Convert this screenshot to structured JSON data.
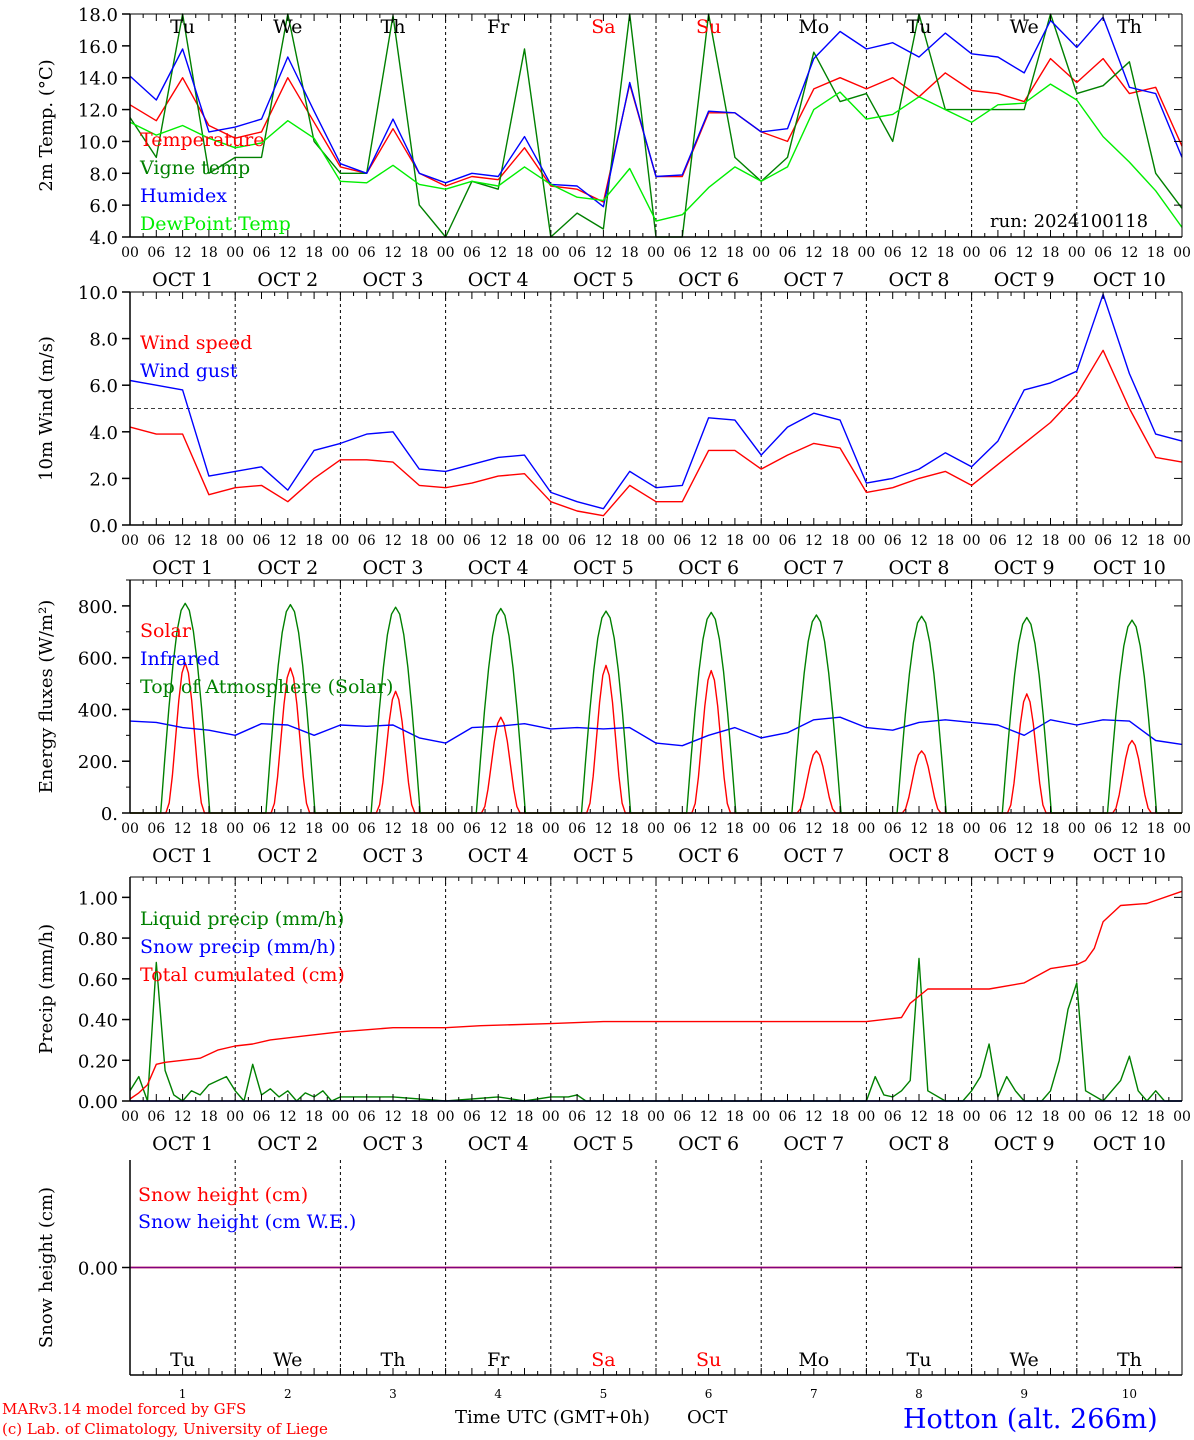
{
  "run_label": "run: 2024100118",
  "footer": {
    "model": "MARv3.14 model forced by GFS",
    "copyright": "(c) Lab. of Climatology, University of Liege",
    "xlabel": "Time UTC (GMT+0h)",
    "month": "OCT",
    "station": "Hotton (alt. 266m)"
  },
  "colors": {
    "red": "#ff0000",
    "blue": "#0000ff",
    "green": "#008000",
    "lime": "#00ee00",
    "purple": "#800080"
  },
  "days": [
    {
      "num": "1",
      "label": "OCT  1",
      "weekday": "Tu"
    },
    {
      "num": "2",
      "label": "OCT  2",
      "weekday": "We"
    },
    {
      "num": "3",
      "label": "OCT  3",
      "weekday": "Th"
    },
    {
      "num": "4",
      "label": "OCT  4",
      "weekday": "Fr"
    },
    {
      "num": "5",
      "label": "OCT  5",
      "weekday": "Sa",
      "weekend": true
    },
    {
      "num": "6",
      "label": "OCT  6",
      "weekday": "Su",
      "weekend": true
    },
    {
      "num": "7",
      "label": "OCT  7",
      "weekday": "Mo"
    },
    {
      "num": "8",
      "label": "OCT  8",
      "weekday": "Tu"
    },
    {
      "num": "9",
      "label": "OCT  9",
      "weekday": "We"
    },
    {
      "num": "10",
      "label": "OCT 10",
      "weekday": "Th"
    }
  ],
  "hour_ticks": [
    "00",
    "06",
    "12",
    "18"
  ],
  "chart_data": [
    {
      "type": "line",
      "ylabel": "2m Temp. (°C)",
      "ylim": [
        4,
        18
      ],
      "yticks": [
        "4.0",
        "6.0",
        "8.0",
        "10.0",
        "12.0",
        "14.0",
        "16.0",
        "18.0"
      ],
      "x_unit": "hours from 2024-10-01 00 UTC",
      "series": [
        {
          "name": "Temperature",
          "color": "#ff0000",
          "x": [
            0,
            6,
            12,
            18,
            24,
            30,
            36,
            42,
            48,
            54,
            60,
            66,
            72,
            78,
            84,
            90,
            96,
            102,
            108,
            114,
            120,
            126,
            132,
            138,
            144,
            150,
            156,
            162,
            168,
            174,
            180,
            186,
            192,
            198,
            204,
            210,
            216,
            222,
            228,
            234,
            240
          ],
          "y": [
            12.3,
            11.3,
            14.0,
            11.0,
            10.2,
            10.6,
            14.0,
            11.2,
            8.4,
            8.0,
            10.8,
            8.0,
            7.2,
            7.8,
            7.6,
            9.6,
            7.2,
            7.0,
            6.2,
            13.6,
            7.8,
            7.8,
            11.8,
            11.8,
            10.6,
            10.0,
            13.3,
            14.0,
            13.3,
            14.0,
            12.8,
            14.3,
            13.2,
            13.0,
            12.5,
            15.2,
            13.7,
            15.2,
            13.0,
            13.4,
            9.7
          ]
        },
        {
          "name": "Vigne temp",
          "color": "#008000",
          "x": [
            0,
            6,
            12,
            18,
            24,
            30,
            36,
            42,
            48,
            54,
            60,
            66,
            72,
            78,
            84,
            90,
            96,
            102,
            108,
            114,
            120,
            126,
            132,
            138,
            144,
            150,
            156,
            162,
            168,
            174,
            180,
            186,
            192,
            198,
            204,
            210,
            216,
            222,
            228,
            234,
            240
          ],
          "y": [
            11.5,
            9.0,
            18.0,
            8.0,
            9.0,
            9.0,
            18.0,
            10.0,
            8.0,
            8.0,
            17.9,
            6.0,
            4.0,
            7.5,
            7.0,
            15.8,
            4.0,
            5.5,
            4.5,
            18.0,
            4.0,
            4.0,
            18.0,
            9.0,
            7.5,
            9.0,
            15.6,
            12.5,
            13.0,
            10.0,
            18.0,
            12.0,
            12.0,
            12.0,
            12.0,
            18.0,
            13.0,
            13.5,
            15.0,
            8.0,
            5.8
          ]
        },
        {
          "name": "Humidex",
          "color": "#0000ff",
          "x": [
            0,
            6,
            12,
            18,
            24,
            30,
            36,
            42,
            48,
            54,
            60,
            66,
            72,
            78,
            84,
            90,
            96,
            102,
            108,
            114,
            120,
            126,
            132,
            138,
            144,
            150,
            156,
            162,
            168,
            174,
            180,
            186,
            192,
            198,
            204,
            210,
            216,
            222,
            228,
            234,
            240
          ],
          "y": [
            14.1,
            12.6,
            15.8,
            10.6,
            10.9,
            11.4,
            15.3,
            11.9,
            8.6,
            8.0,
            11.4,
            8.0,
            7.4,
            8.0,
            7.8,
            10.3,
            7.3,
            7.2,
            5.9,
            13.7,
            7.8,
            7.9,
            11.9,
            11.8,
            10.6,
            10.8,
            15.2,
            16.9,
            15.8,
            16.2,
            15.3,
            16.8,
            15.5,
            15.3,
            14.3,
            17.6,
            15.9,
            17.8,
            13.4,
            13.0,
            9.0
          ]
        },
        {
          "name": "DewPoint Temp",
          "color": "#00ee00",
          "x": [
            0,
            6,
            12,
            18,
            24,
            30,
            36,
            42,
            48,
            54,
            60,
            66,
            72,
            78,
            84,
            90,
            96,
            102,
            108,
            114,
            120,
            126,
            132,
            138,
            144,
            150,
            156,
            162,
            168,
            174,
            180,
            186,
            192,
            198,
            204,
            210,
            216,
            222,
            228,
            234,
            240
          ],
          "y": [
            11.2,
            10.4,
            11.0,
            10.2,
            9.6,
            9.9,
            11.3,
            10.2,
            7.5,
            7.4,
            8.5,
            7.3,
            7.0,
            7.5,
            7.2,
            8.4,
            7.3,
            6.5,
            6.3,
            8.3,
            5.0,
            5.4,
            7.1,
            8.4,
            7.5,
            8.4,
            12.0,
            13.1,
            11.4,
            11.7,
            12.8,
            12.0,
            11.2,
            12.3,
            12.4,
            13.6,
            12.6,
            10.3,
            8.7,
            6.9,
            4.6
          ]
        }
      ]
    },
    {
      "type": "line",
      "ylabel": "10m Wind (m/s)",
      "ylim": [
        0,
        10
      ],
      "yticks": [
        "0.0",
        "2.0",
        "4.0",
        "6.0",
        "8.0",
        "10.0"
      ],
      "reference_line": 5,
      "series": [
        {
          "name": "Wind speed",
          "color": "#ff0000",
          "x": [
            0,
            6,
            12,
            18,
            24,
            30,
            36,
            42,
            48,
            54,
            60,
            66,
            72,
            78,
            84,
            90,
            96,
            102,
            108,
            114,
            120,
            126,
            132,
            138,
            144,
            150,
            156,
            162,
            168,
            174,
            180,
            186,
            192,
            198,
            204,
            210,
            216,
            222,
            228,
            234,
            240
          ],
          "y": [
            4.2,
            3.9,
            3.9,
            1.3,
            1.6,
            1.7,
            1.0,
            2.0,
            2.8,
            2.8,
            2.7,
            1.7,
            1.6,
            1.8,
            2.1,
            2.2,
            1.0,
            0.6,
            0.4,
            1.7,
            1.0,
            1.0,
            3.2,
            3.2,
            2.4,
            3.0,
            3.5,
            3.3,
            1.4,
            1.6,
            2.0,
            2.3,
            1.7,
            2.6,
            3.5,
            4.4,
            5.6,
            7.5,
            5.0,
            2.9,
            2.7
          ]
        },
        {
          "name": "Wind gust",
          "color": "#0000ff",
          "x": [
            0,
            6,
            12,
            18,
            24,
            30,
            36,
            42,
            48,
            54,
            60,
            66,
            72,
            78,
            84,
            90,
            96,
            102,
            108,
            114,
            120,
            126,
            132,
            138,
            144,
            150,
            156,
            162,
            168,
            174,
            180,
            186,
            192,
            198,
            204,
            210,
            216,
            222,
            228,
            234,
            240
          ],
          "y": [
            6.2,
            6.0,
            5.8,
            2.1,
            2.3,
            2.5,
            1.5,
            3.2,
            3.5,
            3.9,
            4.0,
            2.4,
            2.3,
            2.6,
            2.9,
            3.0,
            1.4,
            1.0,
            0.7,
            2.3,
            1.6,
            1.7,
            4.6,
            4.5,
            3.0,
            4.2,
            4.8,
            4.5,
            1.8,
            2.0,
            2.4,
            3.1,
            2.5,
            3.6,
            5.8,
            6.1,
            6.6,
            9.9,
            6.5,
            3.9,
            3.6
          ]
        }
      ]
    },
    {
      "type": "line",
      "ylabel": "Energy fluxes (W/m²)",
      "ylim": [
        0,
        900
      ],
      "yticks": [
        "0.",
        "200.",
        "400.",
        "600.",
        "800."
      ],
      "series": [
        {
          "name": "Solar",
          "color": "#ff0000",
          "peaks": [
            580,
            560,
            470,
            370,
            570,
            550,
            240,
            240,
            460,
            280
          ]
        },
        {
          "name": "Infrared",
          "color": "#0000ff",
          "x": [
            0,
            6,
            12,
            18,
            24,
            30,
            36,
            42,
            48,
            54,
            60,
            66,
            72,
            78,
            84,
            90,
            96,
            102,
            108,
            114,
            120,
            126,
            132,
            138,
            144,
            150,
            156,
            162,
            168,
            174,
            180,
            186,
            192,
            198,
            204,
            210,
            216,
            222,
            228,
            234,
            240
          ],
          "y": [
            355,
            350,
            330,
            320,
            300,
            345,
            340,
            300,
            340,
            335,
            340,
            290,
            270,
            330,
            335,
            345,
            325,
            330,
            325,
            330,
            270,
            260,
            300,
            330,
            290,
            310,
            360,
            370,
            330,
            320,
            350,
            360,
            350,
            340,
            300,
            360,
            340,
            360,
            355,
            280,
            265
          ]
        },
        {
          "name": "Top of Atmosphere (Solar)",
          "color": "#008000",
          "peaks": [
            810,
            805,
            795,
            790,
            780,
            775,
            765,
            760,
            755,
            745
          ]
        }
      ]
    },
    {
      "type": "line",
      "ylabel": "Precip (mm/h)",
      "ylim": [
        0,
        1.1
      ],
      "yticks": [
        "0.00",
        "0.20",
        "0.40",
        "0.60",
        "0.80",
        "1.00"
      ],
      "series": [
        {
          "name": "Liquid precip (mm/h)",
          "color": "#008000",
          "x": [
            0,
            2,
            4,
            6,
            8,
            10,
            12,
            14,
            16,
            18,
            20,
            22,
            24,
            26,
            28,
            30,
            32,
            34,
            36,
            38,
            40,
            42,
            44,
            46,
            48,
            60,
            72,
            84,
            90,
            96,
            100,
            102,
            104,
            108,
            168,
            170,
            172,
            174,
            176,
            178,
            180,
            182,
            186,
            190,
            192,
            194,
            196,
            198,
            200,
            202,
            204,
            208,
            210,
            212,
            214,
            216,
            218,
            222,
            226,
            228,
            230,
            232,
            234,
            236,
            240
          ],
          "y": [
            0.05,
            0.12,
            0.0,
            0.68,
            0.15,
            0.03,
            0.0,
            0.05,
            0.03,
            0.08,
            0.1,
            0.12,
            0.05,
            0.0,
            0.18,
            0.03,
            0.06,
            0.02,
            0.05,
            0.0,
            0.04,
            0.02,
            0.05,
            0.0,
            0.02,
            0.02,
            0.0,
            0.02,
            0.0,
            0.02,
            0.02,
            0.03,
            0.0,
            0.0,
            0.0,
            0.12,
            0.03,
            0.02,
            0.05,
            0.1,
            0.7,
            0.05,
            0.0,
            0.0,
            0.05,
            0.12,
            0.28,
            0.02,
            0.12,
            0.05,
            0.0,
            0.0,
            0.05,
            0.2,
            0.45,
            0.58,
            0.05,
            0.0,
            0.1,
            0.22,
            0.05,
            0.0,
            0.05,
            0.0,
            0.0
          ]
        },
        {
          "name": "Snow precip (mm/h)",
          "color": "#0000ff",
          "x": [
            0,
            240
          ],
          "y": [
            0,
            0
          ]
        },
        {
          "name": "Total cumulated (cm)",
          "color": "#ff0000",
          "x": [
            0,
            2,
            4,
            6,
            8,
            12,
            16,
            20,
            24,
            28,
            32,
            40,
            48,
            60,
            72,
            80,
            96,
            108,
            120,
            150,
            168,
            176,
            178,
            182,
            190,
            196,
            204,
            210,
            216,
            218,
            220,
            222,
            226,
            232,
            240
          ],
          "y": [
            0.01,
            0.04,
            0.08,
            0.18,
            0.19,
            0.2,
            0.21,
            0.25,
            0.27,
            0.28,
            0.3,
            0.32,
            0.34,
            0.36,
            0.36,
            0.37,
            0.38,
            0.39,
            0.39,
            0.39,
            0.39,
            0.41,
            0.48,
            0.55,
            0.55,
            0.55,
            0.58,
            0.65,
            0.67,
            0.69,
            0.75,
            0.88,
            0.96,
            0.97,
            1.03
          ]
        }
      ]
    },
    {
      "type": "line",
      "ylabel": "Snow height (cm)",
      "ylim": [
        -1,
        1
      ],
      "yticks": [
        "0.00"
      ],
      "series": [
        {
          "name": "Snow height (cm)",
          "color": "#ff0000",
          "x": [
            0,
            240
          ],
          "y": [
            0,
            0
          ]
        },
        {
          "name": "Snow height (cm W.E.)",
          "color": "#0000ff",
          "x": [
            0,
            240
          ],
          "y": [
            0,
            0
          ]
        }
      ]
    }
  ]
}
